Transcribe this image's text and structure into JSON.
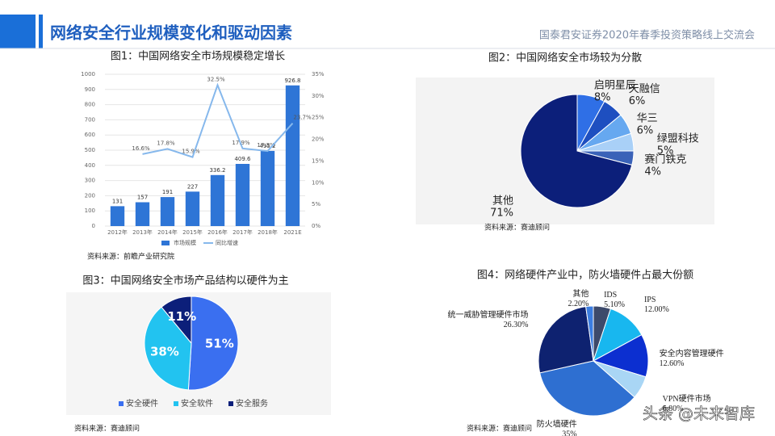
{
  "header": {
    "title": "网络安全行业规模变化和驱动因素",
    "subtitle": "国泰君安证券2020年春季投资策略线上交流会"
  },
  "watermark": "头条 @未来智库",
  "chart_data": [
    {
      "type": "bar",
      "title": "图1：中国网络安全市场规模稳定增长",
      "source": "资料来源：前瞻产业研究院",
      "categories": [
        "2012年",
        "2013年",
        "2014年",
        "2015年",
        "2016年",
        "2017年",
        "2018年",
        "2021E"
      ],
      "series": [
        {
          "name": "市场规模",
          "type": "bar",
          "color": "#2e75d6",
          "values": [
            131,
            157,
            191,
            227,
            336.2,
            409.6,
            495.2,
            926.8
          ]
        },
        {
          "name": "同比增速",
          "type": "line",
          "axis": "y2",
          "color": "#86b8ec",
          "values": [
            null,
            16.6,
            17.8,
            15.9,
            32.5,
            17.9,
            17.3,
            23.7
          ],
          "value_labels": [
            null,
            "16.6%",
            "17.8%",
            "15.9%",
            "32.5%",
            "17.9%",
            "17.3%",
            "23.7%"
          ]
        }
      ],
      "ylim": [
        0,
        1000
      ],
      "yticks": [
        0,
        100,
        200,
        300,
        400,
        500,
        600,
        700,
        800,
        900,
        1000
      ],
      "y2lim": [
        0,
        35
      ],
      "y2ticks": [
        {
          "value": 0,
          "label": "0%"
        },
        {
          "value": 5,
          "label": "5%"
        },
        {
          "value": 10,
          "label": "10%"
        },
        {
          "value": 15,
          "label": "15%"
        },
        {
          "value": 20,
          "label": "20%"
        },
        {
          "value": 25,
          "label": "25%"
        },
        {
          "value": 30,
          "label": "30%"
        },
        {
          "value": 35,
          "label": "35%"
        }
      ],
      "grid": true
    },
    {
      "type": "pie",
      "title": "图2：中国网络安全市场较为分散",
      "source": "资料来源：赛迪顾问",
      "categories": [
        "启明星辰",
        "天融信",
        "华三",
        "绿盟科技",
        "赛门铁克",
        "其他"
      ],
      "values": [
        8,
        6,
        6,
        5,
        4,
        71
      ],
      "value_labels": [
        "8%",
        "6%",
        "6%",
        "5%",
        "4%",
        "71%"
      ],
      "colors": [
        "#2f6fe6",
        "#1e4fc0",
        "#66a8f0",
        "#a9d0f7",
        "#3a62b8",
        "#0c1f7a"
      ]
    },
    {
      "type": "pie",
      "title": "图3：中国网络安全市场产品结构以硬件为主",
      "source": "资料来源：赛迪顾问",
      "categories": [
        "安全硬件",
        "安全软件",
        "安全服务"
      ],
      "values": [
        51,
        38,
        11
      ],
      "value_labels": [
        "51%",
        "38%",
        "11%"
      ],
      "colors": [
        "#3a6ff0",
        "#22c3f0",
        "#0c1f7a"
      ],
      "legend": "bottom"
    },
    {
      "type": "pie",
      "title": "图4：网络硬件产业中，防火墙硬件占最大份额",
      "source": "资料来源：赛迪顾问",
      "categories": [
        "IDS",
        "IPS",
        "安全内容管理硬件",
        "VPN硬件市场",
        "防火墙硬件",
        "统一威胁管理硬件市场",
        "其他"
      ],
      "values": [
        5.1,
        12,
        12.6,
        6.8,
        35,
        26.3,
        2.2
      ],
      "value_labels": [
        "5.10%",
        "12.00%",
        "12.60%",
        "6.80%",
        "35%",
        "26.30%",
        "2.20%"
      ],
      "colors": [
        "#3d4a6b",
        "#18b7ef",
        "#0c2fd0",
        "#a9d6f5",
        "#2e6fd1",
        "#0e2270",
        "#3b7de0"
      ]
    }
  ]
}
